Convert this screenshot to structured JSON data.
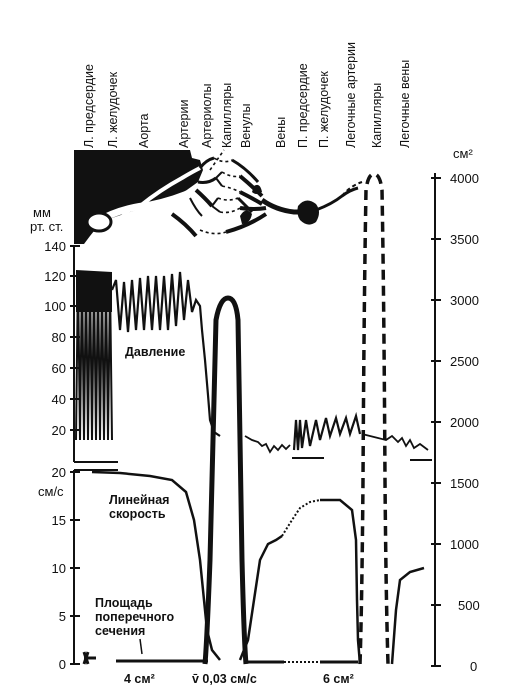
{
  "top_labels": [
    "Л. предсердие",
    "Л. желудочек",
    "Аорта",
    "Артерии",
    "Артериолы",
    "Капилляры",
    "Венулы",
    "Вены",
    "П. предсердие",
    "П. желудочек",
    "Легочные артерии",
    "Капилляры",
    "Легочные вены"
  ],
  "left_axis_top": {
    "unit_line1": "мм",
    "unit_line2": "рт. ст.",
    "ticks": [
      "140",
      "120",
      "100",
      "80",
      "60",
      "40",
      "20"
    ]
  },
  "left_axis_bottom": {
    "unit": "см/с",
    "ticks": [
      "20",
      "15",
      "10",
      "5",
      "0"
    ]
  },
  "right_axis": {
    "unit": "см²",
    "ticks": [
      "4000",
      "3500",
      "3000",
      "2500",
      "2000",
      "1500",
      "1000",
      "500",
      "0"
    ]
  },
  "annotations": {
    "pressure": "Давление",
    "velocity_line1": "Линейная",
    "velocity_line2": "скорость",
    "area_line1": "Площадь",
    "area_line2": "поперечного",
    "area_line3": "сечения"
  },
  "bottom_labels": {
    "aorta_area": "4 см²",
    "capillary_velocity": "v̄ 0,03 см/с",
    "pulmonary_area": "6 см²"
  },
  "colors": {
    "ink": "#111111",
    "background": "#ffffff"
  }
}
